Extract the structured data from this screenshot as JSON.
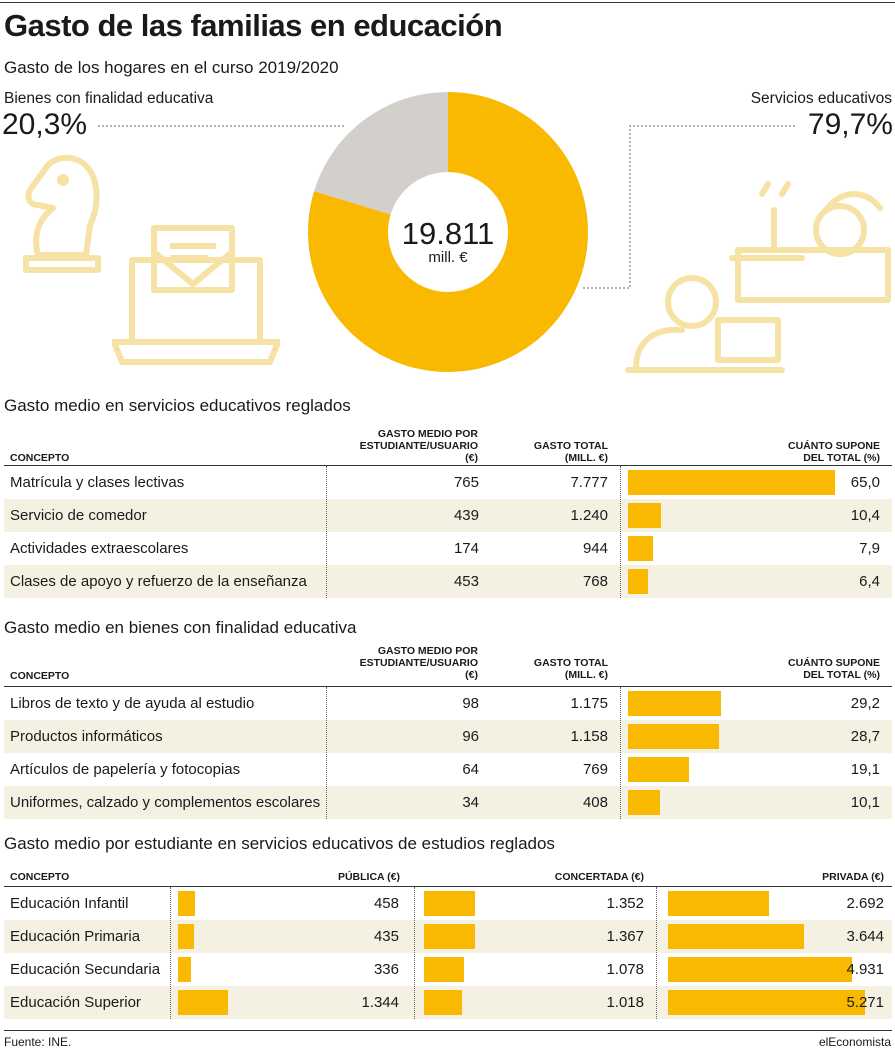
{
  "title": "Gasto de las familias en educación",
  "subtitle": "Gasto de los hogares en el curso 2019/2020",
  "donut": {
    "left_label": "Bienes con finalidad educativa",
    "left_pct": "20,3%",
    "right_label": "Servicios educativos",
    "right_pct": "79,7%",
    "center_value": "19.811",
    "center_unit": "mill. €"
  },
  "section1": {
    "title": "Gasto medio en servicios educativos reglados",
    "headers": {
      "concepto": "CONCEPTO",
      "gasto_medio": [
        "GASTO MEDIO POR",
        "ESTUDIANTE/USUARIO",
        "(€)"
      ],
      "gasto_total": [
        "GASTO TOTAL",
        "(MILL. €)"
      ],
      "cuanto": [
        "CUÁNTO SUPONE",
        "DEL TOTAL (%)"
      ]
    },
    "rows": [
      {
        "concepto": "Matrícula y clases lectivas",
        "medio": "765",
        "total": "7.777",
        "pct": "65,0",
        "pct_value": 65.0
      },
      {
        "concepto": "Servicio de comedor",
        "medio": "439",
        "total": "1.240",
        "pct": "10,4",
        "pct_value": 10.4
      },
      {
        "concepto": "Actividades extraescolares",
        "medio": "174",
        "total": "944",
        "pct": "7,9",
        "pct_value": 7.9
      },
      {
        "concepto": "Clases de apoyo y refuerzo de la enseñanza",
        "medio": "453",
        "total": "768",
        "pct": "6,4",
        "pct_value": 6.4
      }
    ]
  },
  "section2": {
    "title": "Gasto medio en bienes con finalidad educativa",
    "headers": {
      "concepto": "CONCEPTO",
      "gasto_medio": [
        "GASTO MEDIO POR",
        "ESTUDIANTE/USUARIO",
        "(€)"
      ],
      "gasto_total": [
        "GASTO TOTAL",
        "(MILL. €)"
      ],
      "cuanto": [
        "CUÁNTO SUPONE",
        "DEL TOTAL (%)"
      ]
    },
    "rows": [
      {
        "concepto": "Libros de texto y de ayuda al estudio",
        "medio": "98",
        "total": "1.175",
        "pct": "29,2",
        "pct_value": 29.2
      },
      {
        "concepto": "Productos informáticos",
        "medio": "96",
        "total": "1.158",
        "pct": "28,7",
        "pct_value": 28.7
      },
      {
        "concepto": "Artículos de papelería y fotocopias",
        "medio": "64",
        "total": "769",
        "pct": "19,1",
        "pct_value": 19.1
      },
      {
        "concepto": "Uniformes, calzado y complementos escolares",
        "medio": "34",
        "total": "408",
        "pct": "10,1",
        "pct_value": 10.1
      }
    ]
  },
  "section3": {
    "title": "Gasto medio por estudiante en servicios educativos de estudios reglados",
    "headers": {
      "concepto": "CONCEPTO",
      "publica": "PÚBLICA (€)",
      "concertada": "CONCERTADA (€)",
      "privada": "PRIVADA (€)"
    },
    "rows": [
      {
        "concepto": "Educación Infantil",
        "publica": "458",
        "concertada": "1.352",
        "privada": "2.692"
      },
      {
        "concepto": "Educación Primaria",
        "publica": "435",
        "concertada": "1.367",
        "privada": "3.644"
      },
      {
        "concepto": "Educación Secundaria",
        "publica": "336",
        "concertada": "1.078",
        "privada": "4.931"
      },
      {
        "concepto": "Educación Superior",
        "publica": "1.344",
        "concertada": "1.018",
        "privada": "5.271"
      }
    ]
  },
  "footer": {
    "source": "Fuente: INE.",
    "brand": "elEconomista"
  },
  "colors": {
    "accent": "#f9b900",
    "grey": "#d3d0cb",
    "band": "#f4f1e2",
    "icon": "#f7e2a6"
  },
  "chart_data": [
    {
      "type": "pie",
      "subtitle": "Gasto de los hogares en el curso 2019/2020",
      "categories": [
        "Bienes con finalidad educativa",
        "Servicios educativos"
      ],
      "values": [
        20.3,
        79.7
      ],
      "total_label": "19.811 mill. €"
    },
    {
      "type": "bar",
      "title": "Gasto medio en servicios educativos reglados",
      "categories": [
        "Matrícula y clases lectivas",
        "Servicio de comedor",
        "Actividades extraescolares",
        "Clases de apoyo y refuerzo de la enseñanza"
      ],
      "values": [
        65.0,
        10.4,
        7.9,
        6.4
      ],
      "xlim": [
        0,
        65
      ]
    },
    {
      "type": "bar",
      "title": "Gasto medio en bienes con finalidad educativa",
      "categories": [
        "Libros de texto y de ayuda al estudio",
        "Productos informáticos",
        "Artículos de papelería y fotocopias",
        "Uniformes, calzado y complementos escolares"
      ],
      "values": [
        29.2,
        28.7,
        19.1,
        10.1
      ],
      "xlim": [
        0,
        65
      ]
    },
    {
      "type": "bar",
      "title": "Gasto medio por estudiante en servicios educativos de estudios reglados",
      "categories": [
        "Educación Infantil",
        "Educación Primaria",
        "Educación Secundaria",
        "Educación Superior"
      ],
      "series": [
        {
          "name": "PÚBLICA (€)",
          "values": [
            458,
            435,
            336,
            1344
          ]
        },
        {
          "name": "CONCERTADA (€)",
          "values": [
            1352,
            1367,
            1078,
            1018
          ]
        },
        {
          "name": "PRIVADA (€)",
          "values": [
            2692,
            3644,
            4931,
            5271
          ]
        }
      ],
      "xlim": [
        0,
        5271
      ]
    }
  ]
}
